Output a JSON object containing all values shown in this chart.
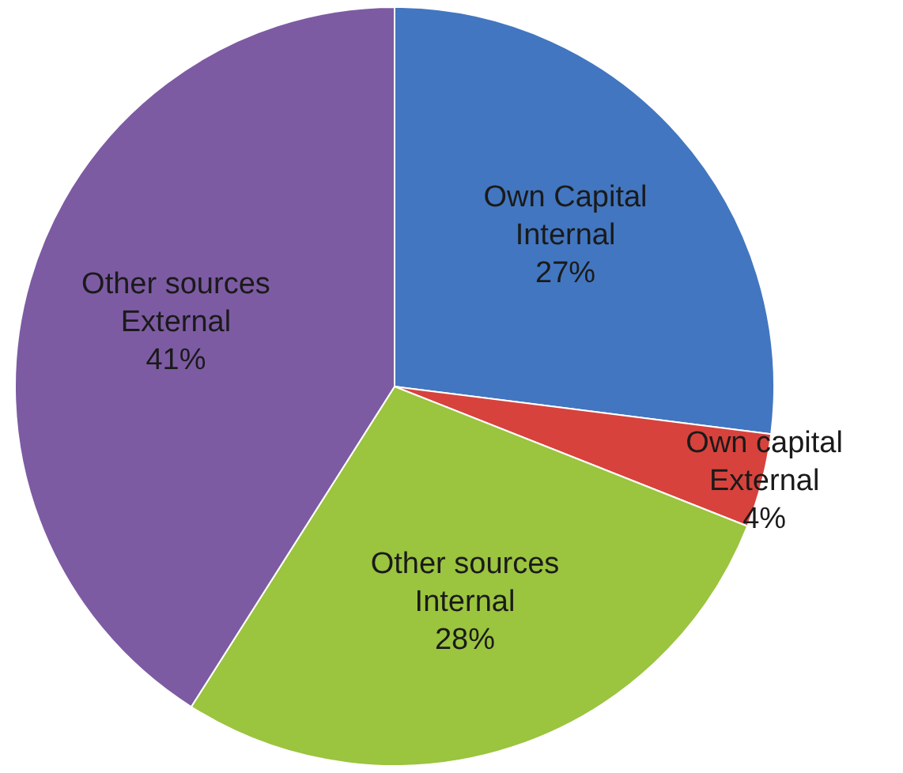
{
  "chart_data": {
    "type": "pie",
    "categories": [
      "Own Capital Internal",
      "Own capital External",
      "Other sources Internal",
      "Other sources External"
    ],
    "values": [
      27,
      4,
      28,
      41
    ],
    "colors": [
      "#4276c0",
      "#d8423c",
      "#9bc43f",
      "#7d5ba3"
    ],
    "value_labels": [
      "27%",
      "4%",
      "28%",
      "41%"
    ],
    "legend": false
  }
}
